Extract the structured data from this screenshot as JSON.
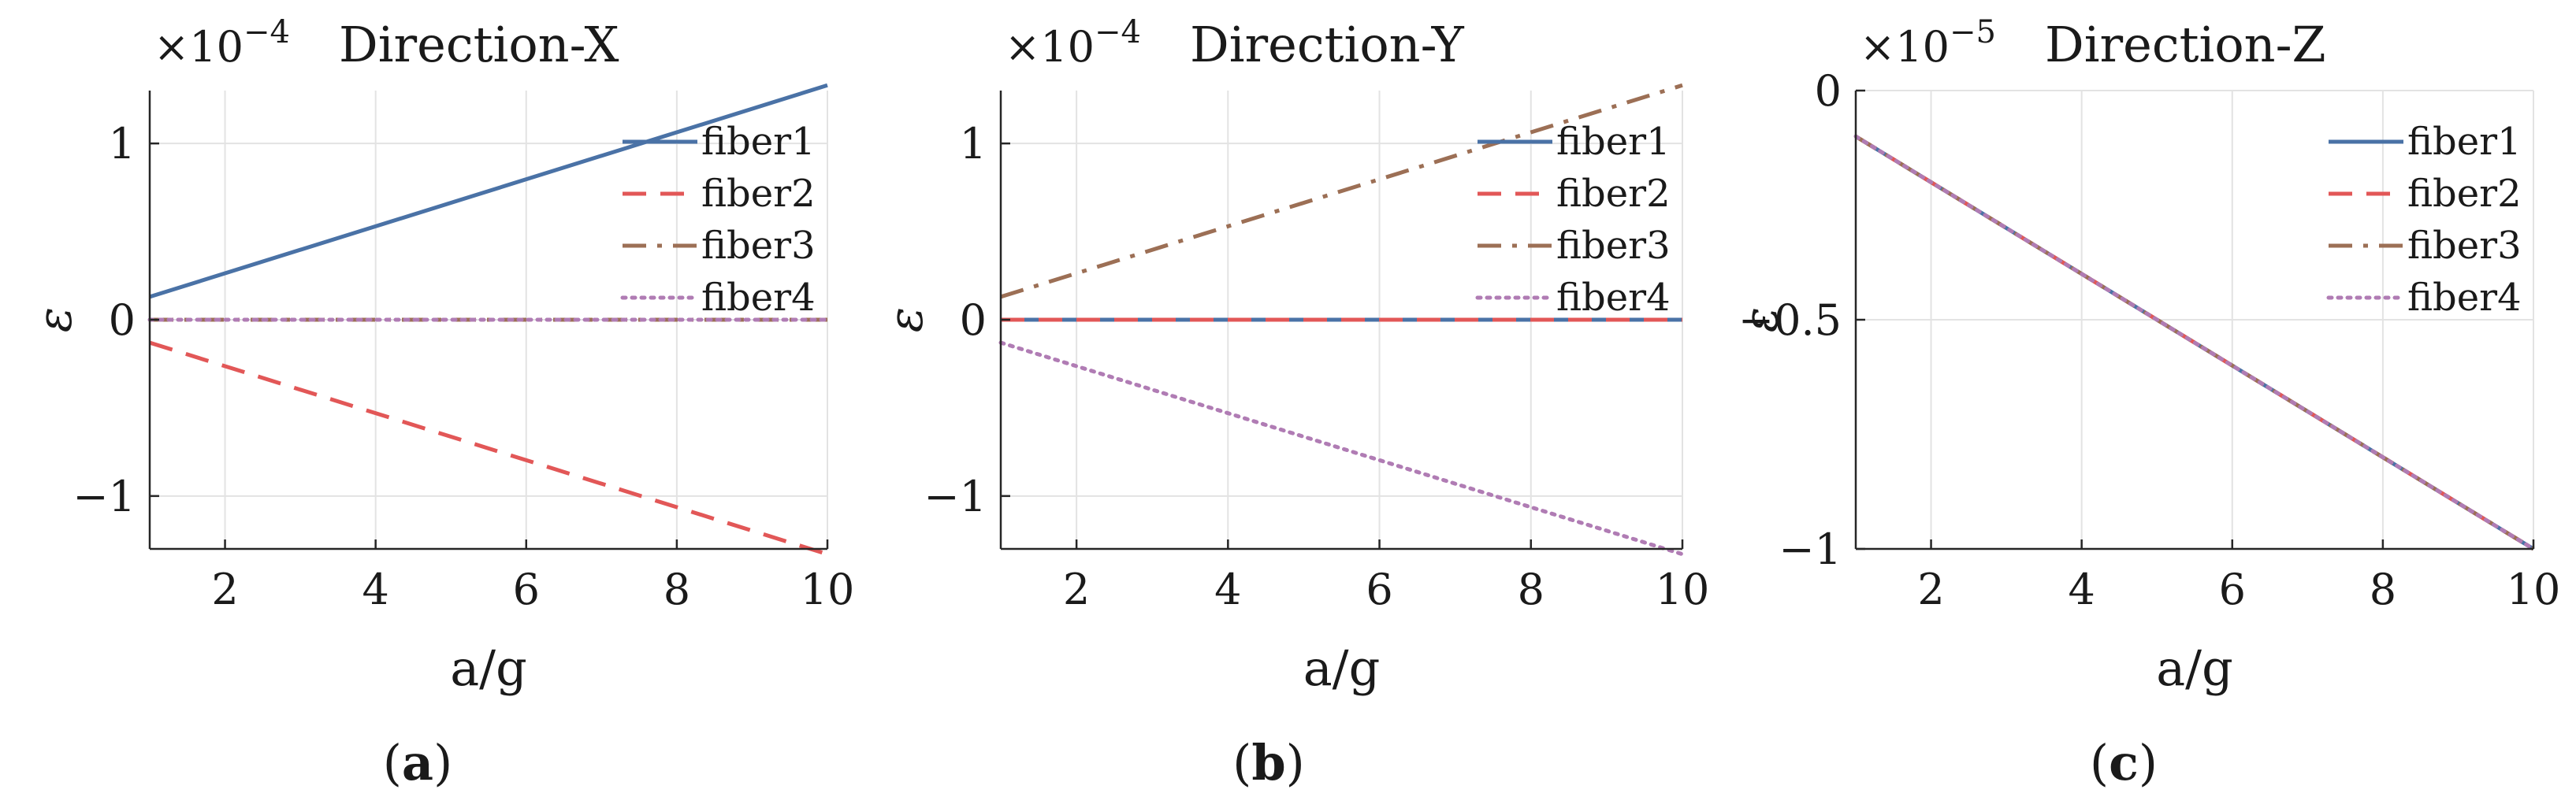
{
  "chart_data": [
    {
      "type": "line",
      "title": "Direction-X",
      "caption": "a",
      "xlabel": "a/g",
      "ylabel": "ε",
      "y_exponent_label": "×10",
      "y_exponent": "−4",
      "xlim": [
        1,
        10
      ],
      "ylim": [
        -1.3,
        1.3
      ],
      "xticks": [
        2,
        4,
        6,
        8,
        10
      ],
      "xtick_labels": [
        "2",
        "4",
        "6",
        "8",
        "10"
      ],
      "yticks": [
        -1,
        0,
        1
      ],
      "ytick_labels": [
        "−1",
        "0",
        "1"
      ],
      "grid": true,
      "legend_position": "top-right",
      "series": [
        {
          "name": "fiber1",
          "x": [
            1,
            10
          ],
          "y": [
            0.13,
            1.33
          ],
          "color": "#4a72a6",
          "dash": "solid"
        },
        {
          "name": "fiber2",
          "x": [
            1,
            10
          ],
          "y": [
            -0.13,
            -1.33
          ],
          "color": "#e25757",
          "dash": "dashed"
        },
        {
          "name": "fiber3",
          "x": [
            1,
            10
          ],
          "y": [
            0,
            0
          ],
          "color": "#9c6f55",
          "dash": "dashdot"
        },
        {
          "name": "fiber4",
          "x": [
            1,
            10
          ],
          "y": [
            0,
            0
          ],
          "color": "#b07cb4",
          "dash": "dotted"
        }
      ]
    },
    {
      "type": "line",
      "title": "Direction-Y",
      "caption": "b",
      "xlabel": "a/g",
      "ylabel": "ε",
      "y_exponent_label": "×10",
      "y_exponent": "−4",
      "xlim": [
        1,
        10
      ],
      "ylim": [
        -1.3,
        1.3
      ],
      "xticks": [
        2,
        4,
        6,
        8,
        10
      ],
      "xtick_labels": [
        "2",
        "4",
        "6",
        "8",
        "10"
      ],
      "yticks": [
        -1,
        0,
        1
      ],
      "ytick_labels": [
        "−1",
        "0",
        "1"
      ],
      "grid": true,
      "legend_position": "top-right",
      "series": [
        {
          "name": "fiber1",
          "x": [
            1,
            10
          ],
          "y": [
            0,
            0
          ],
          "color": "#4a72a6",
          "dash": "solid"
        },
        {
          "name": "fiber2",
          "x": [
            1,
            10
          ],
          "y": [
            0,
            0
          ],
          "color": "#e25757",
          "dash": "dashed"
        },
        {
          "name": "fiber3",
          "x": [
            1,
            10
          ],
          "y": [
            0.13,
            1.33
          ],
          "color": "#9c6f55",
          "dash": "dashdot"
        },
        {
          "name": "fiber4",
          "x": [
            1,
            10
          ],
          "y": [
            -0.13,
            -1.33
          ],
          "color": "#b07cb4",
          "dash": "dotted"
        }
      ]
    },
    {
      "type": "line",
      "title": "Direction-Z",
      "caption": "c",
      "xlabel": "a/g",
      "ylabel": "ε",
      "y_exponent_label": "×10",
      "y_exponent": "−5",
      "xlim": [
        1,
        10
      ],
      "ylim": [
        -1.0,
        0.0
      ],
      "xticks": [
        2,
        4,
        6,
        8,
        10
      ],
      "xtick_labels": [
        "2",
        "4",
        "6",
        "8",
        "10"
      ],
      "yticks": [
        -1,
        -0.5,
        0
      ],
      "ytick_labels": [
        "−1",
        "−0.5",
        "0"
      ],
      "grid": true,
      "legend_position": "top-right",
      "series": [
        {
          "name": "fiber1",
          "x": [
            1,
            10
          ],
          "y": [
            -0.1,
            -1.0
          ],
          "color": "#4a72a6",
          "dash": "solid"
        },
        {
          "name": "fiber2",
          "x": [
            1,
            10
          ],
          "y": [
            -0.1,
            -1.0
          ],
          "color": "#e25757",
          "dash": "dashed"
        },
        {
          "name": "fiber3",
          "x": [
            1,
            10
          ],
          "y": [
            -0.1,
            -1.0
          ],
          "color": "#9c6f55",
          "dash": "dashdot"
        },
        {
          "name": "fiber4",
          "x": [
            1,
            10
          ],
          "y": [
            -0.1,
            -1.0
          ],
          "color": "#b07cb4",
          "dash": "dotted"
        }
      ]
    }
  ]
}
